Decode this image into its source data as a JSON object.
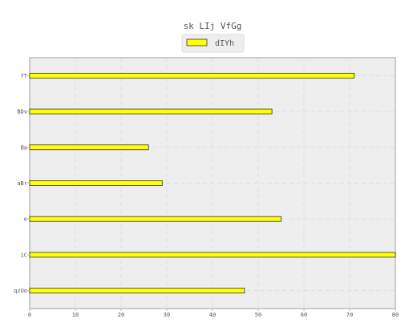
{
  "chart_data": {
    "type": "bar",
    "orientation": "horizontal",
    "title": "sk LIj VfGg",
    "xlabel": "",
    "ylabel": "",
    "categories": [
      "fT",
      "BDv",
      "Ba",
      "aBr",
      "e",
      "iC",
      "qzUo"
    ],
    "series": [
      {
        "name": "dIYh",
        "values": [
          71,
          53,
          26,
          29,
          55,
          80,
          47
        ]
      }
    ],
    "xlim": [
      0,
      80
    ],
    "xticks": [
      0,
      10,
      20,
      30,
      40,
      50,
      60,
      70,
      80
    ],
    "grid": true,
    "legend_position": "top-center",
    "colors": {
      "bar_fill": "#ffff00",
      "bar_stroke": "#333333",
      "plot_background": "#eeeeee",
      "plot_border": "#bbbbbb",
      "text": "#555555"
    }
  }
}
